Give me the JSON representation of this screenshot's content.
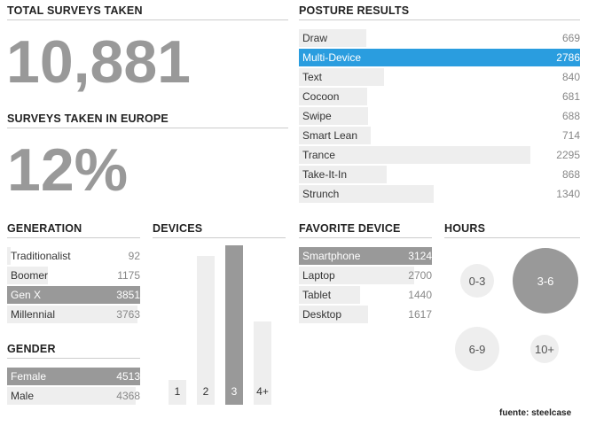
{
  "total": {
    "title": "TOTAL SURVEYS TAKEN",
    "value": "10,881"
  },
  "europe": {
    "title": "SURVEYS TAKEN IN EUROPE",
    "value": "12%"
  },
  "source": "fuente: steelcase",
  "chart_data": [
    {
      "type": "bar",
      "title": "POSTURE RESULTS",
      "orientation": "horizontal",
      "categories": [
        "Draw",
        "Multi-Device",
        "Text",
        "Cocoon",
        "Swipe",
        "Smart Lean",
        "Trance",
        "Take-It-In",
        "Strunch"
      ],
      "values": [
        669,
        2786,
        840,
        681,
        688,
        714,
        2295,
        868,
        1340
      ],
      "highlight": "Multi-Device",
      "highlight_color": "#2a9ddf",
      "value_labels": [
        "669",
        "2786",
        "840",
        "681",
        "688",
        "714",
        "2295",
        "868",
        "1340"
      ]
    },
    {
      "type": "bar",
      "title": "GENERATION",
      "orientation": "horizontal",
      "categories": [
        "Traditionalist",
        "Boomer",
        "Gen X",
        "Millennial"
      ],
      "values": [
        92,
        1175,
        3851,
        3763
      ],
      "highlight": "Gen X",
      "value_labels": [
        "92",
        "1175",
        "3851",
        "3763"
      ]
    },
    {
      "type": "bar",
      "title": "GENDER",
      "orientation": "horizontal",
      "categories": [
        "Female",
        "Male"
      ],
      "values": [
        4513,
        4368
      ],
      "highlight": "Female",
      "value_labels": [
        "4513",
        "4368"
      ]
    },
    {
      "type": "bar",
      "title": "DEVICES",
      "orientation": "vertical",
      "categories": [
        "1",
        "2",
        "3",
        "4+"
      ],
      "values": [
        700,
        4230,
        4540,
        2380
      ],
      "highlight": "3"
    },
    {
      "type": "bar",
      "title": "FAVORITE DEVICE",
      "orientation": "horizontal",
      "categories": [
        "Smartphone",
        "Laptop",
        "Tablet",
        "Desktop"
      ],
      "values": [
        3124,
        2700,
        1440,
        1617
      ],
      "highlight": "Smartphone",
      "value_labels": [
        "3124",
        "2700",
        "1440",
        "1617"
      ]
    },
    {
      "type": "bubble",
      "title": "HOURS",
      "categories": [
        "0-3",
        "3-6",
        "6-9",
        "10+"
      ],
      "values": [
        1600,
        5800,
        2600,
        1100
      ],
      "highlight": "3-6"
    }
  ],
  "colors": {
    "bar": "#eeeeee",
    "highlight": "#999999",
    "accent": "#2a9ddf",
    "big_number": "#999999"
  }
}
